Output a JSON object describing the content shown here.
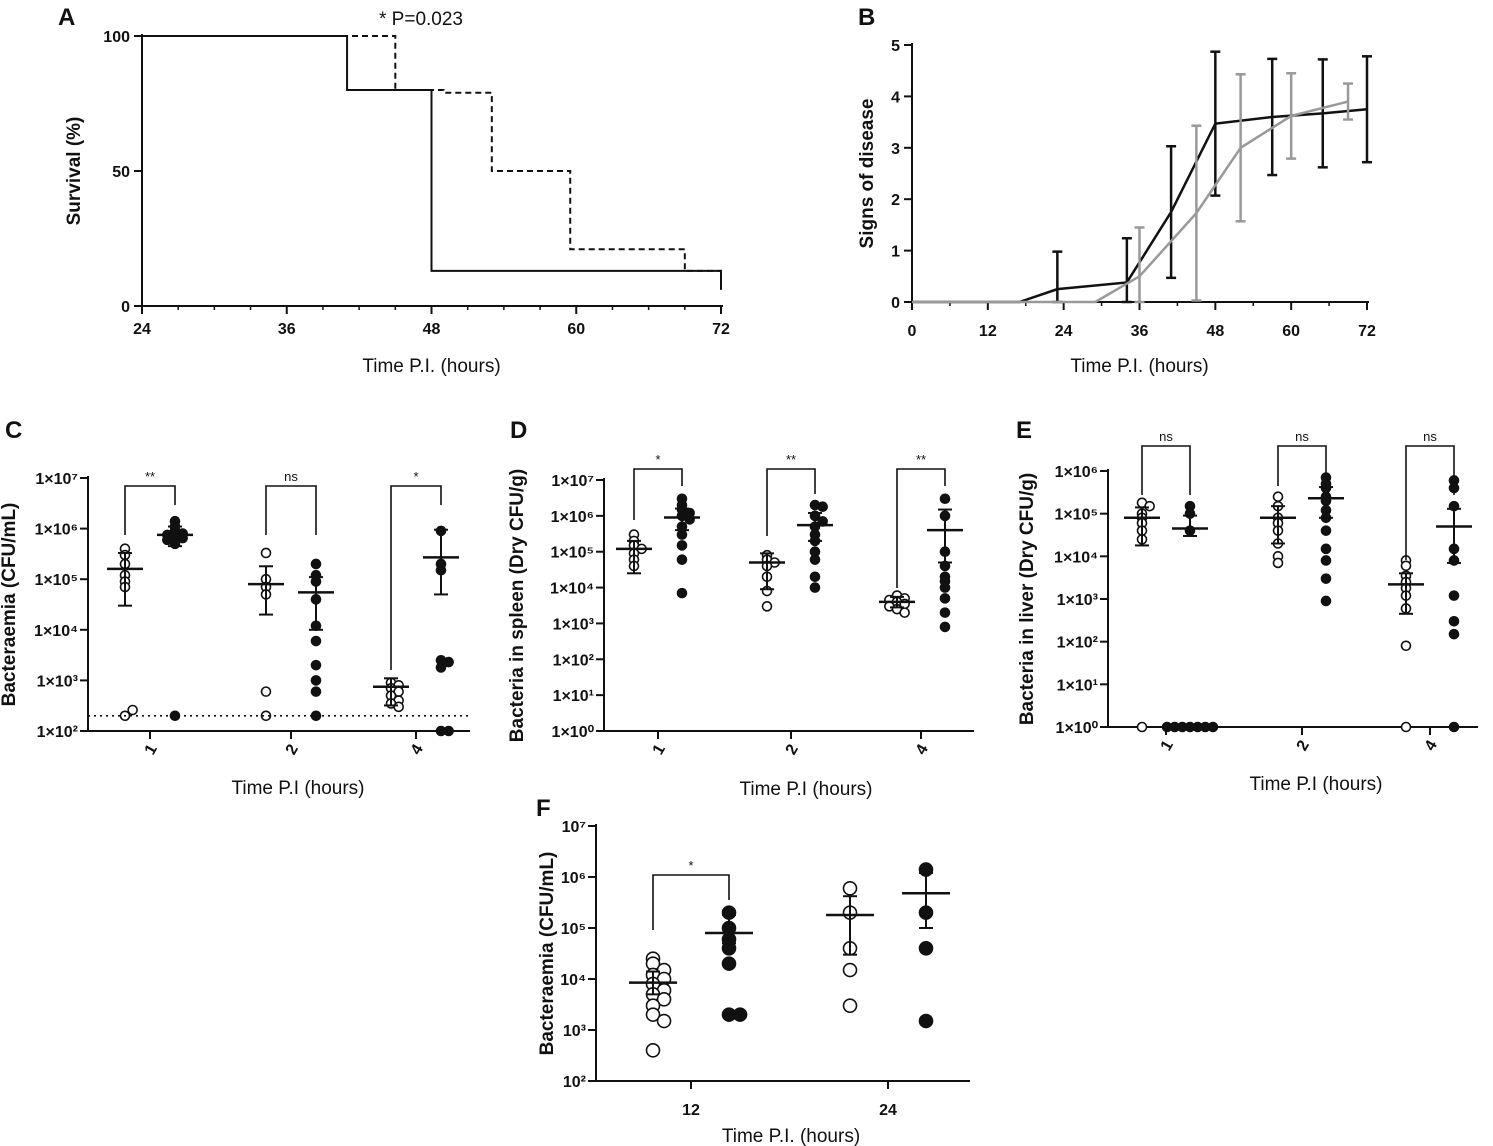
{
  "chart_data": [
    {
      "panel": "A",
      "type": "line",
      "subtype": "kaplan-meier",
      "xlabel": "Time P.I. (hours)",
      "ylabel": "Survival (%)",
      "xlim": [
        24,
        72
      ],
      "ylim": [
        0,
        100
      ],
      "xticks": [
        "24",
        "36",
        "48",
        "60",
        "72"
      ],
      "yticks": [
        "0",
        "50",
        "100"
      ],
      "annotation": "* P=0.023",
      "series": [
        {
          "name": "solid",
          "style": "solid",
          "color": "#111111",
          "x": [
            24,
            41,
            41,
            48,
            48,
            72,
            72
          ],
          "y": [
            100,
            100,
            80,
            80,
            13,
            13,
            6
          ]
        },
        {
          "name": "dashed",
          "style": "dashed",
          "color": "#111111",
          "x": [
            24,
            45,
            45,
            49,
            49,
            53,
            53,
            59.5,
            59.5,
            69,
            69,
            72,
            72
          ],
          "y": [
            100,
            100,
            80,
            80,
            79,
            79,
            50,
            50,
            21,
            21,
            13,
            13,
            6
          ]
        }
      ]
    },
    {
      "panel": "B",
      "type": "line",
      "xlabel": "Time P.I. (hours)",
      "ylabel": "Signs of disease",
      "xlim": [
        0,
        72
      ],
      "ylim": [
        0,
        5
      ],
      "xticks": [
        "0",
        "12",
        "24",
        "36",
        "48",
        "60",
        "72"
      ],
      "yticks": [
        "0",
        "1",
        "2",
        "3",
        "4",
        "5"
      ],
      "series": [
        {
          "name": "black",
          "color": "#111111",
          "x": [
            0,
            17,
            23,
            34,
            41,
            48,
            57,
            65,
            72
          ],
          "y": [
            0,
            0,
            0.25,
            0.38,
            1.75,
            3.47,
            3.6,
            3.67,
            3.75
          ],
          "err": [
            0,
            0,
            0.73,
            0.86,
            1.28,
            1.4,
            1.13,
            1.05,
            1.03
          ]
        },
        {
          "name": "grey",
          "color": "#999999",
          "x": [
            0,
            29,
            36,
            45,
            52,
            60,
            69
          ],
          "y": [
            0,
            0,
            0.5,
            1.73,
            3.0,
            3.62,
            3.9
          ],
          "err": [
            0,
            0,
            0.95,
            1.7,
            1.43,
            0.83,
            0.35
          ]
        }
      ]
    },
    {
      "panel": "C",
      "type": "scatter",
      "ylabel": "Bacteraemia (CFU/mL)",
      "xlabel": "Time P.I  (hours)",
      "categories": [
        "1",
        "2",
        "4"
      ],
      "yscale": "log",
      "ylim_exp": [
        2,
        7
      ],
      "yticks": [
        "1×10²",
        "1×10³",
        "1×10⁴",
        "1×10⁵",
        "1×10⁶",
        "1×10⁷"
      ],
      "detection_limit": 200,
      "series": [
        {
          "name": "open",
          "filled": false,
          "groups": [
            {
              "points": [
                400000,
                300000,
                200000,
                120000,
                90000,
                70000,
                200,
                260
              ],
              "mean": 160000,
              "err_low": 30000,
              "err_high": 330000
            },
            {
              "points": [
                330000,
                100000,
                70000,
                50000,
                600,
                200
              ],
              "mean": 80000,
              "err_low": 20000,
              "err_high": 180000
            },
            {
              "points": [
                900,
                800,
                700,
                600,
                500,
                400,
                350,
                300
              ],
              "mean": 750,
              "err_low": 320,
              "err_high": 1100
            }
          ]
        },
        {
          "name": "filled",
          "filled": true,
          "groups": [
            {
              "points": [
                1400000,
                1100000,
                900000,
                800000,
                750000,
                700000,
                650000,
                600000,
                500000,
                200
              ],
              "mean": 750000,
              "err_low": 450000,
              "err_high": 1100000
            },
            {
              "points": [
                200000,
                120000,
                90000,
                40000,
                12000,
                6000,
                2000,
                1000,
                600,
                200
              ],
              "mean": 55000,
              "err_low": 10000,
              "err_high": 110000
            },
            {
              "points": [
                900000,
                200000,
                150000,
                2500,
                2300,
                1800,
                100,
                100
              ],
              "mean": 270000,
              "err_low": 50000,
              "err_high": 950000
            }
          ]
        }
      ],
      "comparisons": [
        "**",
        "ns",
        "*"
      ]
    },
    {
      "panel": "D",
      "type": "scatter",
      "ylabel": "Bacteria in spleen (Dry CFU/g)",
      "xlabel": "Time P.I  (hours)",
      "categories": [
        "1",
        "2",
        "4"
      ],
      "yscale": "log",
      "ylim_exp": [
        0,
        7
      ],
      "yticks": [
        "1×10⁰",
        "1×10¹",
        "1×10²",
        "1×10³",
        "1×10⁴",
        "1×10⁵",
        "1×10⁶",
        "1×10⁷"
      ],
      "series": [
        {
          "name": "open",
          "filled": false,
          "groups": [
            {
              "points": [
                300000,
                200000,
                150000,
                120000,
                90000,
                60000,
                40000
              ],
              "mean": 120000,
              "err_low": 25000,
              "err_high": 200000
            },
            {
              "points": [
                80000,
                60000,
                50000,
                40000,
                20000,
                8000,
                3000
              ],
              "mean": 50000,
              "err_low": 9000,
              "err_high": 90000
            },
            {
              "points": [
                6000,
                5000,
                4500,
                4000,
                3500,
                3000,
                2500,
                2000
              ],
              "mean": 4000,
              "err_low": 2800,
              "err_high": 5500
            }
          ]
        },
        {
          "name": "filled",
          "filled": true,
          "groups": [
            {
              "points": [
                3000000,
                2000000,
                1500000,
                1200000,
                1000000,
                800000,
                500000,
                300000,
                150000,
                60000,
                7000
              ],
              "mean": 900000,
              "err_low": 400000,
              "err_high": 1600000
            },
            {
              "points": [
                2000000,
                1800000,
                1000000,
                700000,
                500000,
                300000,
                200000,
                100000,
                60000,
                20000,
                10000
              ],
              "mean": 550000,
              "err_low": 200000,
              "err_high": 1200000
            },
            {
              "points": [
                3000000,
                1000000,
                100000,
                40000,
                20000,
                15000,
                10000,
                5000,
                2000,
                800
              ],
              "mean": 400000,
              "err_low": 50000,
              "err_high": 1500000
            }
          ]
        }
      ],
      "comparisons": [
        "*",
        "**",
        "**"
      ]
    },
    {
      "panel": "E",
      "type": "scatter",
      "ylabel": "Bacteria in liver (Dry CFU/g)",
      "xlabel": "Time P.I  (hours)",
      "categories": [
        "1",
        "2",
        "4"
      ],
      "yscale": "log",
      "ylim_exp": [
        0,
        6
      ],
      "yticks": [
        "1×10⁰",
        "1×10¹",
        "1×10²",
        "1×10³",
        "1×10⁴",
        "1×10⁵",
        "1×10⁶"
      ],
      "series": [
        {
          "name": "open",
          "filled": false,
          "groups": [
            {
              "points": [
                180000,
                150000,
                100000,
                80000,
                60000,
                40000,
                25000,
                1
              ],
              "mean": 80000,
              "err_low": 18000,
              "err_high": 140000
            },
            {
              "points": [
                250000,
                150000,
                80000,
                60000,
                40000,
                20000,
                10000,
                7000
              ],
              "mean": 80000,
              "err_low": 20000,
              "err_high": 150000
            },
            {
              "points": [
                8000,
                6000,
                3500,
                2500,
                1800,
                1200,
                600,
                80,
                1
              ],
              "mean": 2200,
              "err_low": 450,
              "err_high": 4000
            }
          ]
        },
        {
          "name": "filled",
          "filled": true,
          "groups": [
            {
              "points": [
                150000,
                100000,
                40000,
                1,
                1,
                1,
                1,
                1,
                1,
                1
              ],
              "mean": 45000,
              "err_low": 30000,
              "err_high": 90000
            },
            {
              "points": [
                700000,
                500000,
                400000,
                250000,
                200000,
                120000,
                80000,
                40000,
                15000,
                8000,
                3000,
                900
              ],
              "mean": 230000,
              "err_low": 80000,
              "err_high": 420000
            },
            {
              "points": [
                600000,
                400000,
                150000,
                15000,
                8000,
                1200,
                300,
                150,
                1
              ],
              "mean": 50000,
              "err_low": 7000,
              "err_high": 130000
            }
          ]
        }
      ],
      "comparisons": [
        "ns",
        "ns",
        "ns"
      ]
    },
    {
      "panel": "F",
      "type": "scatter",
      "ylabel": "Bacteraemia (CFU/mL)",
      "xlabel": "Time P.I. (hours)",
      "categories": [
        "12",
        "24"
      ],
      "yscale": "log",
      "ylim_exp": [
        2,
        7
      ],
      "yticks": [
        "10²",
        "10³",
        "10⁴",
        "10⁵",
        "10⁶",
        "10⁷"
      ],
      "series": [
        {
          "name": "open",
          "filled": false,
          "groups": [
            {
              "points": [
                25000,
                20000,
                15000,
                12000,
                10000,
                8000,
                6000,
                5000,
                4000,
                3000,
                2000,
                1500,
                400
              ],
              "mean": 8500,
              "err_low": 5000,
              "err_high": 14000
            },
            {
              "points": [
                600000,
                200000,
                40000,
                15000,
                3000
              ],
              "mean": 180000,
              "err_low": 30000,
              "err_high": 420000
            }
          ]
        },
        {
          "name": "filled",
          "filled": true,
          "groups": [
            {
              "points": [
                200000,
                100000,
                60000,
                40000,
                20000,
                2000,
                2000
              ],
              "mean": 80000,
              "err_low": 50000,
              "err_high": 180000
            },
            {
              "points": [
                1400000,
                200000,
                40000,
                1500
              ],
              "mean": 480000,
              "err_low": 100000,
              "err_high": 1200000
            }
          ]
        }
      ],
      "comparisons": [
        "*"
      ]
    }
  ]
}
